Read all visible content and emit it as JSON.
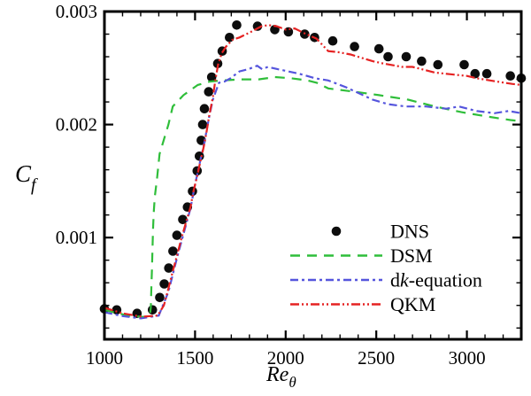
{
  "figure": {
    "background": "#ffffff",
    "axis_color": "#000000",
    "title": ""
  },
  "axes": {
    "x": {
      "label_main": "Re",
      "label_sub": "θ",
      "min": 1000,
      "max": 3300,
      "minor_step": 100,
      "ticks": [
        {
          "v": 1000,
          "label": "1000"
        },
        {
          "v": 1500,
          "label": "1500"
        },
        {
          "v": 2000,
          "label": "2000"
        },
        {
          "v": 2500,
          "label": "2500"
        },
        {
          "v": 3000,
          "label": "3000"
        }
      ]
    },
    "y": {
      "label_main": "C",
      "label_sub": "f",
      "min": 0.0001,
      "max": 0.003,
      "minor_step": 0.0002,
      "ticks": [
        {
          "v": 0.001,
          "label": "0.001"
        },
        {
          "v": 0.002,
          "label": "0.002"
        },
        {
          "v": 0.003,
          "label": "0.003"
        }
      ]
    }
  },
  "legend": {
    "items": [
      {
        "id": "dns",
        "swatch": "marker",
        "color": "#0d0d0d",
        "dash": "",
        "label_parts": [
          {
            "t": "DNS",
            "i": false
          }
        ]
      },
      {
        "id": "dsm",
        "swatch": "line",
        "color": "#2fbe3a",
        "dash": "11 8",
        "label_parts": [
          {
            "t": "DSM",
            "i": false
          }
        ]
      },
      {
        "id": "dk-equation",
        "swatch": "line",
        "color": "#5555dd",
        "dash": "9 4 3 4",
        "label_parts": [
          {
            "t": "d",
            "i": false
          },
          {
            "t": "k",
            "i": true
          },
          {
            "t": "-equation",
            "i": false
          }
        ]
      },
      {
        "id": "qkm",
        "swatch": "line",
        "color": "#e52222",
        "dash": "10 3 2 3 2 3",
        "label_parts": [
          {
            "t": "QKM",
            "i": false
          }
        ]
      }
    ]
  },
  "chart_data": {
    "type": "line",
    "title": "",
    "xlabel": "Re_θ",
    "ylabel": "C_f",
    "xlim": [
      1000,
      3300
    ],
    "ylim": [
      0.0001,
      0.003
    ],
    "x_major_ticks": [
      1000,
      1500,
      2000,
      2500,
      3000
    ],
    "x_minor_step": 100,
    "y_major_ticks": [
      0.001,
      0.002,
      0.003
    ],
    "y_minor_step": 0.0002,
    "grid": false,
    "legend_position": "inside lower right",
    "series": [
      {
        "id": "dns",
        "name": "DNS",
        "style": "scatter",
        "color": "#0d0d0d",
        "dash": "",
        "points": [
          [
            1000,
            0.00037
          ],
          [
            1068,
            0.00036
          ],
          [
            1180,
            0.00033
          ],
          [
            1265,
            0.00036
          ],
          [
            1305,
            0.00047
          ],
          [
            1330,
            0.00059
          ],
          [
            1355,
            0.00073
          ],
          [
            1378,
            0.00088
          ],
          [
            1400,
            0.00102
          ],
          [
            1432,
            0.00116
          ],
          [
            1458,
            0.00127
          ],
          [
            1486,
            0.00141
          ],
          [
            1512,
            0.00159
          ],
          [
            1524,
            0.00172
          ],
          [
            1534,
            0.00186
          ],
          [
            1542,
            0.002
          ],
          [
            1552,
            0.00214
          ],
          [
            1575,
            0.00229
          ],
          [
            1592,
            0.00242
          ],
          [
            1625,
            0.00254
          ],
          [
            1650,
            0.00265
          ],
          [
            1690,
            0.00277
          ],
          [
            1730,
            0.00288
          ],
          [
            1845,
            0.00287
          ],
          [
            1940,
            0.00284
          ],
          [
            2015,
            0.00282
          ],
          [
            2105,
            0.0028
          ],
          [
            2160,
            0.00277
          ],
          [
            2260,
            0.00274
          ],
          [
            2380,
            0.00269
          ],
          [
            2515,
            0.00267
          ],
          [
            2565,
            0.0026
          ],
          [
            2665,
            0.0026
          ],
          [
            2750,
            0.00256
          ],
          [
            2840,
            0.00253
          ],
          [
            2985,
            0.00253
          ],
          [
            3045,
            0.00245
          ],
          [
            3110,
            0.00245
          ],
          [
            3240,
            0.00243
          ],
          [
            3300,
            0.00241
          ]
        ]
      },
      {
        "id": "dsm",
        "name": "DSM",
        "style": "dashed",
        "color": "#2fbe3a",
        "dash": "11 8",
        "points": [
          [
            1000,
            0.00036
          ],
          [
            1060,
            0.000335
          ],
          [
            1130,
            0.00031
          ],
          [
            1200,
            0.0003
          ],
          [
            1250,
            0.000295
          ],
          [
            1256,
            0.00038
          ],
          [
            1259,
            0.00055
          ],
          [
            1262,
            0.00072
          ],
          [
            1265,
            0.0009
          ],
          [
            1268,
            0.00107
          ],
          [
            1272,
            0.00122
          ],
          [
            1278,
            0.00136
          ],
          [
            1290,
            0.00152
          ],
          [
            1304,
            0.00174
          ],
          [
            1353,
            0.002
          ],
          [
            1377,
            0.00216
          ],
          [
            1436,
            0.00226
          ],
          [
            1515,
            0.00235
          ],
          [
            1580,
            0.00238
          ],
          [
            1650,
            0.00239
          ],
          [
            1750,
            0.0024
          ],
          [
            1850,
            0.0024
          ],
          [
            1941,
            0.00242
          ],
          [
            2030,
            0.00241
          ],
          [
            2120,
            0.00239
          ],
          [
            2171,
            0.00237
          ],
          [
            2235,
            0.00232
          ],
          [
            2382,
            0.00229
          ],
          [
            2515,
            0.00226
          ],
          [
            2676,
            0.00222
          ],
          [
            2823,
            0.00216
          ],
          [
            2970,
            0.00211
          ],
          [
            3117,
            0.00207
          ],
          [
            3240,
            0.00204
          ],
          [
            3300,
            0.00203
          ]
        ]
      },
      {
        "id": "dk-equation",
        "name": "dk-equation",
        "style": "dashdot",
        "color": "#5555dd",
        "dash": "9 4 3 4",
        "points": [
          [
            1000,
            0.00034
          ],
          [
            1100,
            0.000305
          ],
          [
            1200,
            0.000285
          ],
          [
            1300,
            0.00031
          ],
          [
            1353,
            0.00052
          ],
          [
            1402,
            0.00083
          ],
          [
            1451,
            0.00112
          ],
          [
            1475,
            0.00126
          ],
          [
            1500,
            0.00147
          ],
          [
            1529,
            0.00168
          ],
          [
            1549,
            0.00182
          ],
          [
            1578,
            0.00207
          ],
          [
            1598,
            0.00222
          ],
          [
            1632,
            0.00237
          ],
          [
            1662,
            0.00238
          ],
          [
            1696,
            0.00241
          ],
          [
            1745,
            0.00247
          ],
          [
            1794,
            0.00249
          ],
          [
            1843,
            0.00252
          ],
          [
            1870,
            0.00249
          ],
          [
            1902,
            0.00251
          ],
          [
            1956,
            0.00249
          ],
          [
            2015,
            0.00247
          ],
          [
            2074,
            0.00245
          ],
          [
            2162,
            0.00241
          ],
          [
            2235,
            0.00239
          ],
          [
            2333,
            0.00233
          ],
          [
            2480,
            0.00222
          ],
          [
            2564,
            0.00218
          ],
          [
            2662,
            0.00216
          ],
          [
            2774,
            0.00216
          ],
          [
            2887,
            0.00214
          ],
          [
            2956,
            0.00216
          ],
          [
            3054,
            0.00212
          ],
          [
            3152,
            0.0021
          ],
          [
            3230,
            0.00212
          ],
          [
            3300,
            0.0021
          ]
        ]
      },
      {
        "id": "qkm",
        "name": "QKM",
        "style": "dashdotdot",
        "color": "#e52222",
        "dash": "10 3 2 3 2 3",
        "points": [
          [
            1000,
            0.00038
          ],
          [
            1100,
            0.00033
          ],
          [
            1206,
            0.0003
          ],
          [
            1294,
            0.00031
          ],
          [
            1328,
            0.0004
          ],
          [
            1353,
            0.00055
          ],
          [
            1377,
            0.0007
          ],
          [
            1402,
            0.00085
          ],
          [
            1426,
            0.001
          ],
          [
            1451,
            0.00114
          ],
          [
            1475,
            0.00127
          ],
          [
            1490,
            0.0014
          ],
          [
            1510,
            0.00153
          ],
          [
            1529,
            0.00167
          ],
          [
            1549,
            0.00181
          ],
          [
            1564,
            0.00194
          ],
          [
            1578,
            0.00208
          ],
          [
            1598,
            0.00224
          ],
          [
            1612,
            0.00239
          ],
          [
            1627,
            0.00253
          ],
          [
            1647,
            0.00263
          ],
          [
            1671,
            0.00269
          ],
          [
            1706,
            0.00275
          ],
          [
            1745,
            0.00277
          ],
          [
            1808,
            0.00282
          ],
          [
            1867,
            0.00287
          ],
          [
            1906,
            0.00288
          ],
          [
            1950,
            0.00287
          ],
          [
            2000,
            0.00284
          ],
          [
            2050,
            0.00285
          ],
          [
            2100,
            0.00281
          ],
          [
            2170,
            0.00276
          ],
          [
            2235,
            0.00265
          ],
          [
            2290,
            0.00264
          ],
          [
            2358,
            0.00262
          ],
          [
            2480,
            0.00256
          ],
          [
            2539,
            0.00254
          ],
          [
            2642,
            0.00251
          ],
          [
            2700,
            0.00251
          ],
          [
            2774,
            0.00248
          ],
          [
            2823,
            0.00246
          ],
          [
            2936,
            0.00244
          ],
          [
            3000,
            0.00243
          ],
          [
            3053,
            0.00241
          ],
          [
            3166,
            0.00238
          ],
          [
            3249,
            0.00236
          ],
          [
            3300,
            0.00235
          ]
        ]
      }
    ]
  }
}
